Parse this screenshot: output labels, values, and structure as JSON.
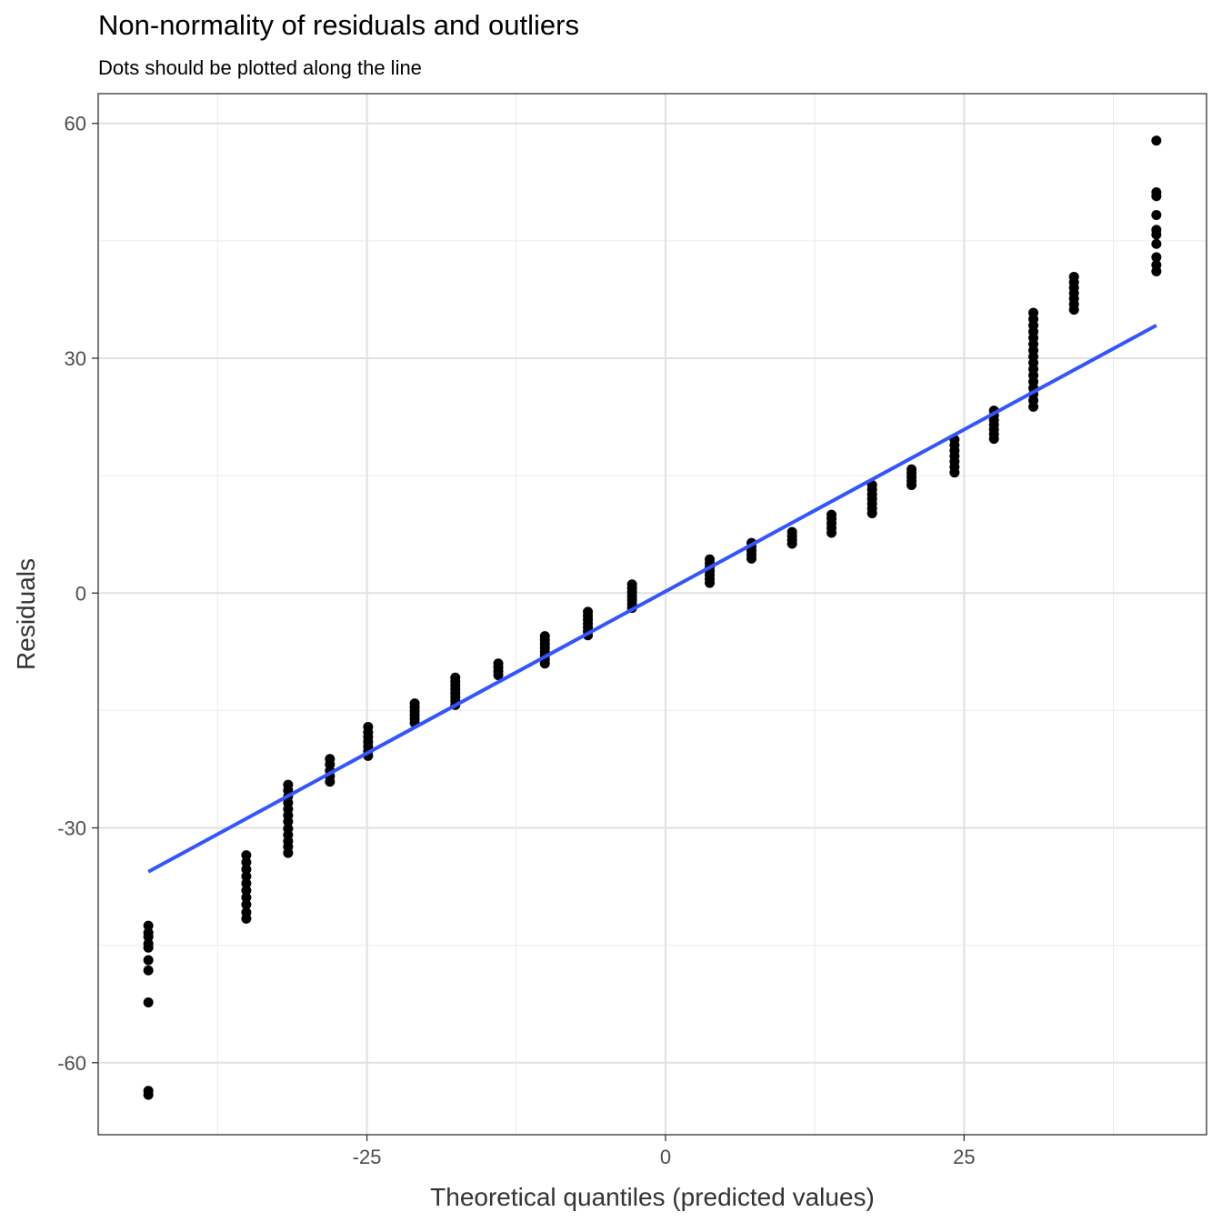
{
  "chart_data": {
    "type": "scatter",
    "title": "Non-normality of residuals and outliers",
    "subtitle": "Dots should be plotted along the line",
    "xlabel": "Theoretical quantiles (predicted values)",
    "ylabel": "Residuals",
    "xlim": [
      -47.5,
      45.3
    ],
    "ylim": [
      -69.2,
      63.8
    ],
    "x_ticks": [
      -25,
      0,
      25
    ],
    "x_tick_labels": [
      "-25",
      "0",
      "25"
    ],
    "y_ticks": [
      -60,
      -30,
      0,
      30,
      60
    ],
    "y_tick_labels": [
      "-60",
      "-30",
      "0",
      "30",
      "60"
    ],
    "grid": true,
    "point_color": "#000000",
    "line_color": "#3355ff",
    "reference_line": {
      "x": [
        -43.3,
        41.1
      ],
      "y": [
        -35.6,
        34.2
      ]
    },
    "clusters": [
      {
        "x": -43.3,
        "y": [
          -64.1,
          -63.6,
          -52.3,
          -48.2,
          -46.9,
          -45.3,
          -44.8,
          -43.9,
          -43.4,
          -42.5
        ]
      },
      {
        "x": -35.1,
        "y": [
          -41.6,
          -40.8,
          -39.8,
          -38.9,
          -38.0,
          -37.1,
          -36.2,
          -35.3,
          -34.4,
          -33.5
        ]
      },
      {
        "x": -31.6,
        "y": [
          -33.2,
          -32.4,
          -31.7,
          -30.9,
          -30.1,
          -29.2,
          -28.4,
          -27.6,
          -26.8,
          -26.0,
          -25.2,
          -24.5
        ]
      },
      {
        "x": -28.1,
        "y": [
          -24.1,
          -23.4,
          -22.7,
          -21.9,
          -21.2
        ]
      },
      {
        "x": -24.9,
        "y": [
          -20.8,
          -20.2,
          -19.6,
          -19.0,
          -18.4,
          -17.8,
          -17.1
        ]
      },
      {
        "x": -21.0,
        "y": [
          -16.6,
          -16.1,
          -15.6,
          -15.1,
          -14.6,
          -14.1
        ]
      },
      {
        "x": -17.6,
        "y": [
          -14.3,
          -13.8,
          -13.3,
          -12.8,
          -12.3,
          -11.8,
          -11.3,
          -10.8
        ]
      },
      {
        "x": -14.0,
        "y": [
          -10.5,
          -10.0,
          -9.5,
          -9.0
        ]
      },
      {
        "x": -10.1,
        "y": [
          -9.0,
          -8.5,
          -8.0,
          -7.5,
          -7.0,
          -6.5,
          -6.0,
          -5.5
        ]
      },
      {
        "x": -6.5,
        "y": [
          -5.4,
          -4.9,
          -4.4,
          -3.9,
          -3.4,
          -2.9,
          -2.4
        ]
      },
      {
        "x": -2.8,
        "y": [
          -1.9,
          -1.4,
          -0.9,
          -0.4,
          0.1,
          0.6,
          1.1
        ]
      },
      {
        "x": 3.7,
        "y": [
          1.3,
          1.8,
          2.3,
          2.8,
          3.3,
          3.8,
          4.3
        ]
      },
      {
        "x": 7.2,
        "y": [
          4.4,
          4.9,
          5.4,
          5.9,
          6.4
        ]
      },
      {
        "x": 10.6,
        "y": [
          6.3,
          6.8,
          7.3,
          7.8
        ]
      },
      {
        "x": 13.9,
        "y": [
          7.7,
          8.3,
          8.9,
          9.5,
          10.0
        ]
      },
      {
        "x": 17.3,
        "y": [
          10.2,
          10.8,
          11.4,
          12.0,
          12.6,
          13.2,
          13.8
        ]
      },
      {
        "x": 20.6,
        "y": [
          13.8,
          14.3,
          14.8,
          15.3,
          15.8
        ]
      },
      {
        "x": 24.2,
        "y": [
          15.4,
          16.1,
          16.8,
          17.5,
          18.2,
          18.9,
          19.6
        ]
      },
      {
        "x": 27.5,
        "y": [
          19.7,
          20.3,
          20.9,
          21.5,
          22.1,
          22.7,
          23.3
        ]
      },
      {
        "x": 30.8,
        "y": [
          23.8,
          24.6,
          25.4,
          26.2,
          27.0,
          27.8,
          28.6,
          29.4,
          30.2,
          31.0,
          31.8,
          32.6,
          33.4,
          34.2,
          35.0,
          35.8
        ]
      },
      {
        "x": 34.2,
        "y": [
          36.2,
          36.9,
          37.6,
          38.3,
          39.0,
          39.7,
          40.4
        ]
      },
      {
        "x": 41.1,
        "y": [
          41.1,
          41.9,
          42.9,
          44.6,
          45.8,
          46.4,
          48.3,
          50.7,
          51.2,
          57.8
        ]
      }
    ]
  }
}
